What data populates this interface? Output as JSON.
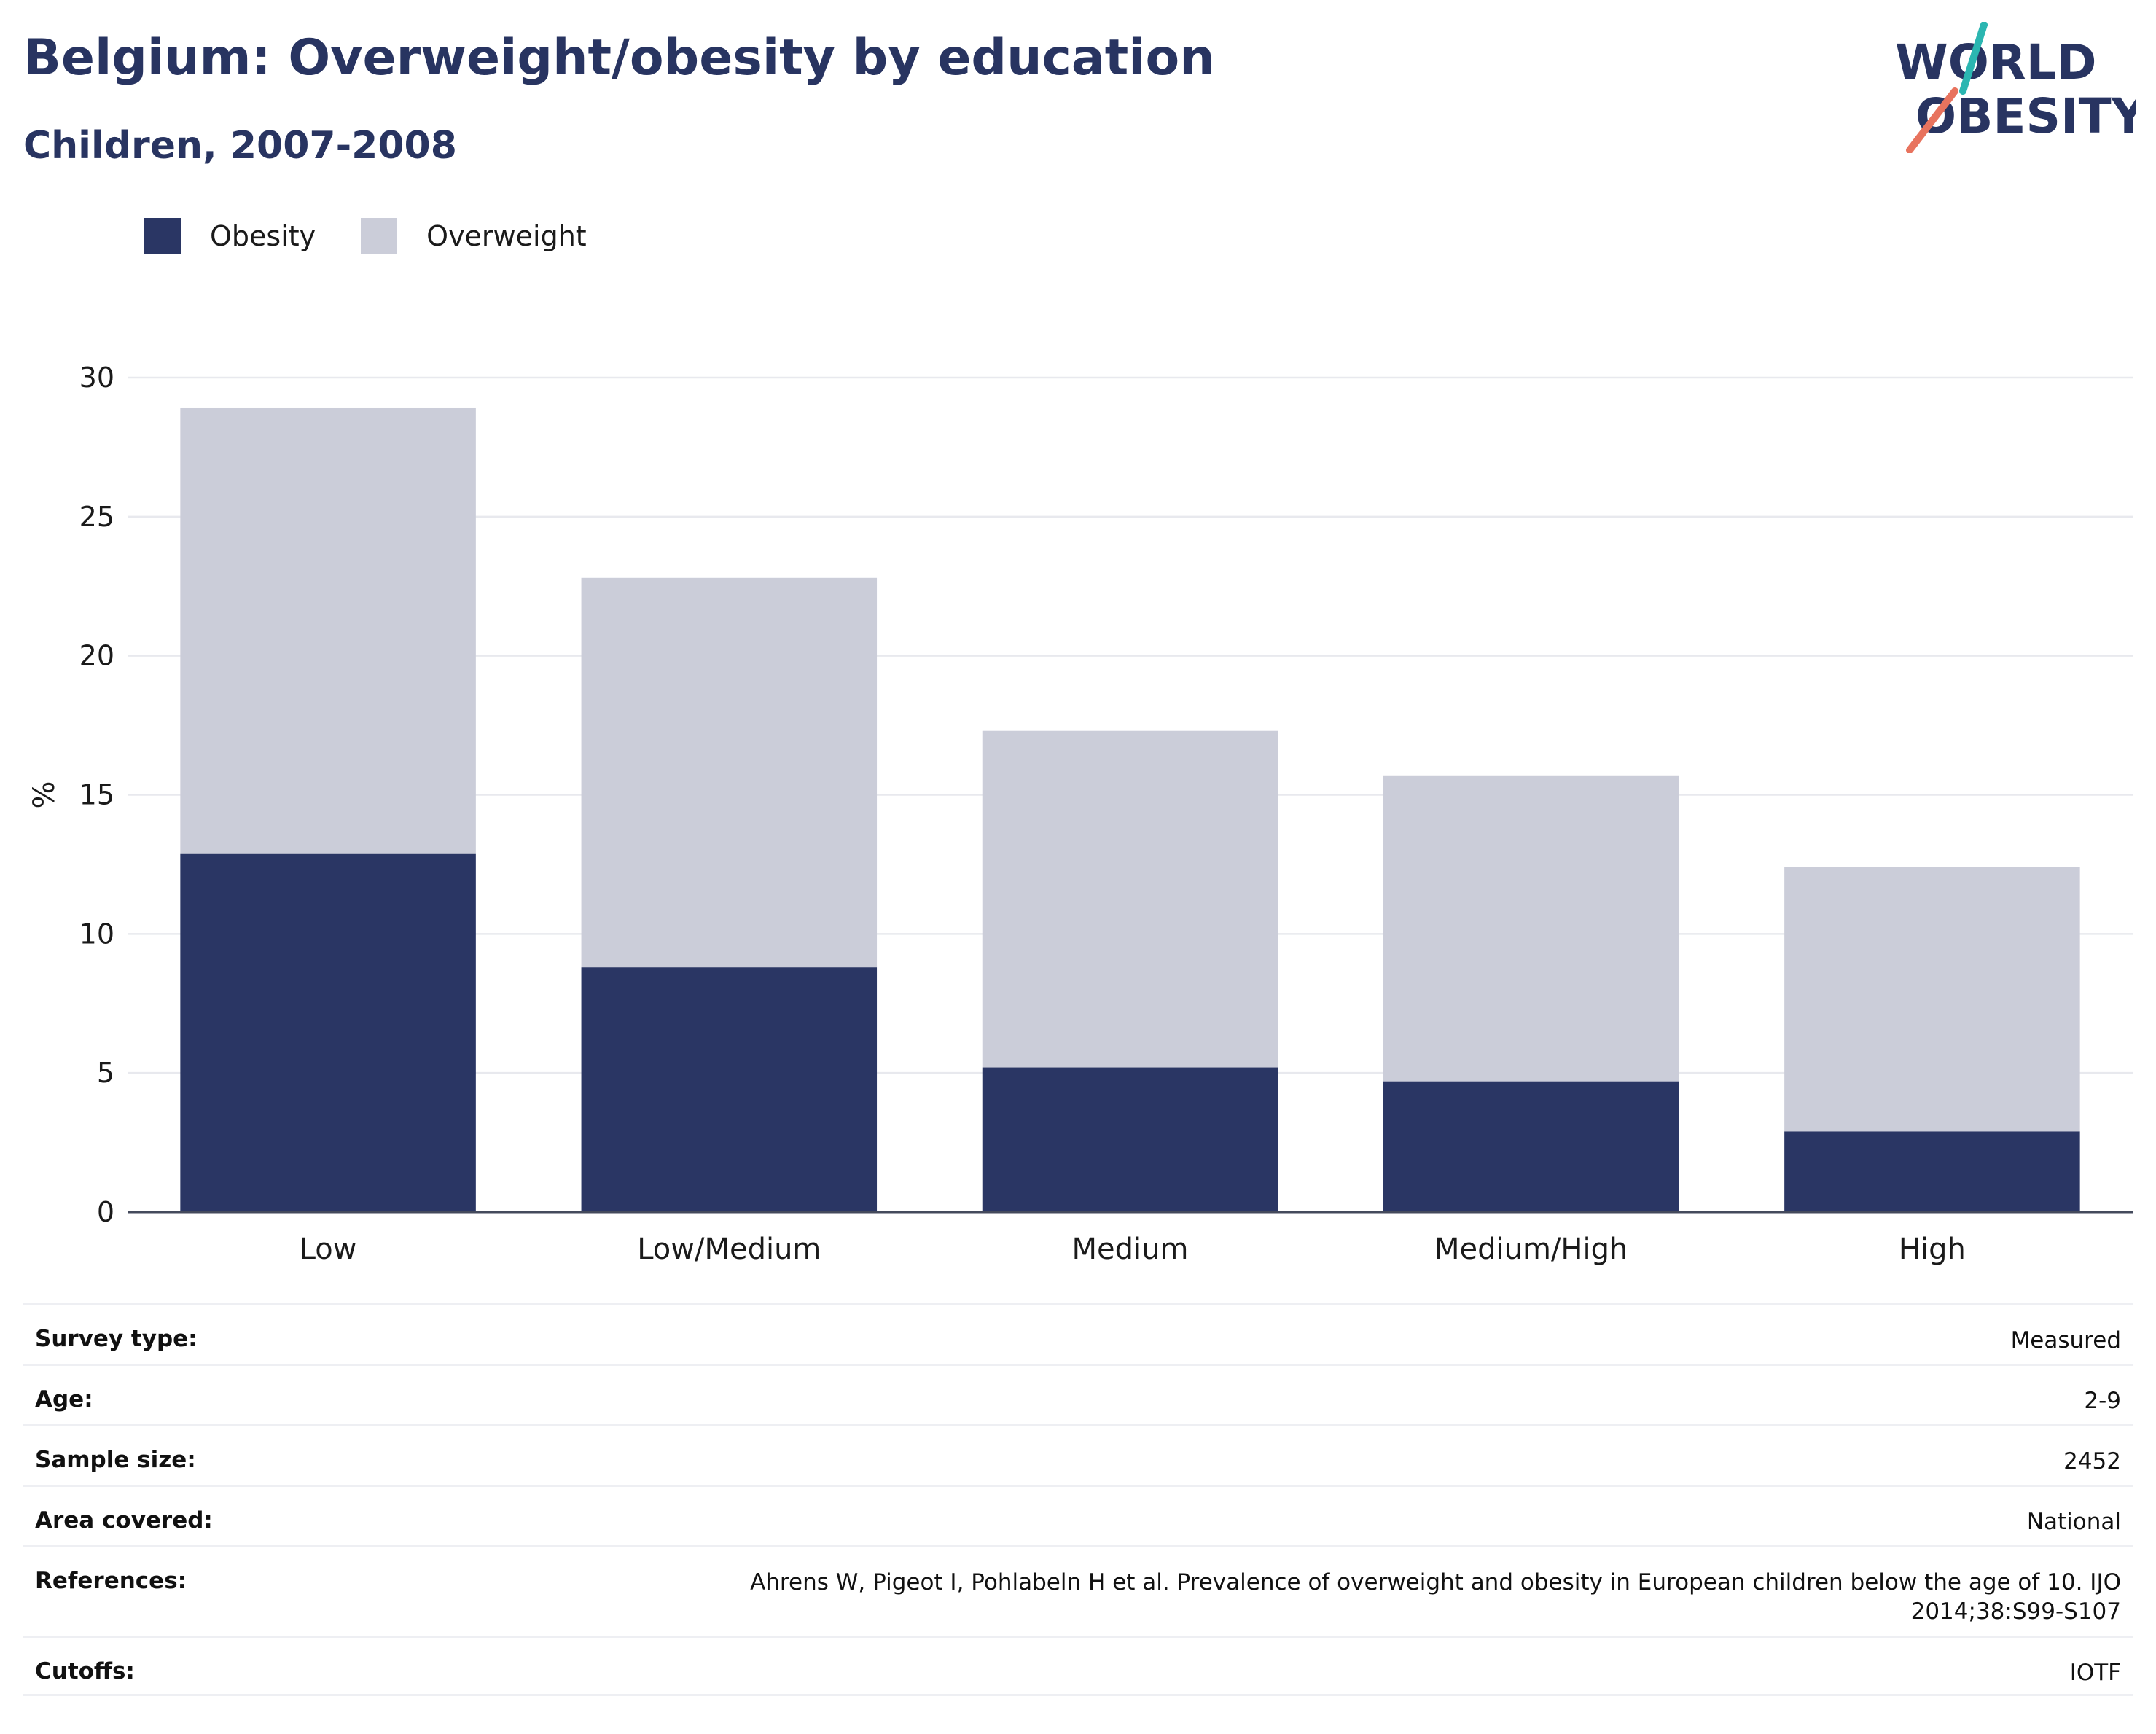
{
  "header": {
    "title": "Belgium: Overweight/obesity by education",
    "subtitle": "Children, 2007-2008"
  },
  "logo": {
    "line1": "WORLD",
    "line2": "OBESITY"
  },
  "legend": [
    {
      "label": "Obesity",
      "color": "#2a3664"
    },
    {
      "label": "Overweight",
      "color": "#cbcdd9"
    }
  ],
  "chart_data": {
    "type": "bar",
    "stacked": true,
    "categories": [
      "Low",
      "Low/Medium",
      "Medium",
      "Medium/High",
      "High"
    ],
    "series": [
      {
        "name": "Obesity",
        "values": [
          12.9,
          8.8,
          5.2,
          4.7,
          2.9
        ],
        "color": "#2a3664"
      },
      {
        "name": "Overweight",
        "values": [
          16.0,
          14.0,
          12.1,
          11.0,
          9.5
        ],
        "color": "#cbcdd9"
      }
    ],
    "ylabel": "%",
    "ylim": [
      0,
      30
    ],
    "yticks": [
      0,
      5,
      10,
      15,
      20,
      25,
      30
    ],
    "grid": true,
    "legend_position": "top-left"
  },
  "meta": [
    {
      "key": "Survey type:",
      "value": "Measured"
    },
    {
      "key": "Age:",
      "value": "2-9"
    },
    {
      "key": "Sample size:",
      "value": "2452"
    },
    {
      "key": "Area covered:",
      "value": "National"
    },
    {
      "key": "References:",
      "value": "Ahrens W, Pigeot I, Pohlabeln H et al. Prevalence of overweight and obesity in European children below the age of 10. IJO 2014;38:S99-S107"
    },
    {
      "key": "Cutoffs:",
      "value": "IOTF"
    }
  ]
}
